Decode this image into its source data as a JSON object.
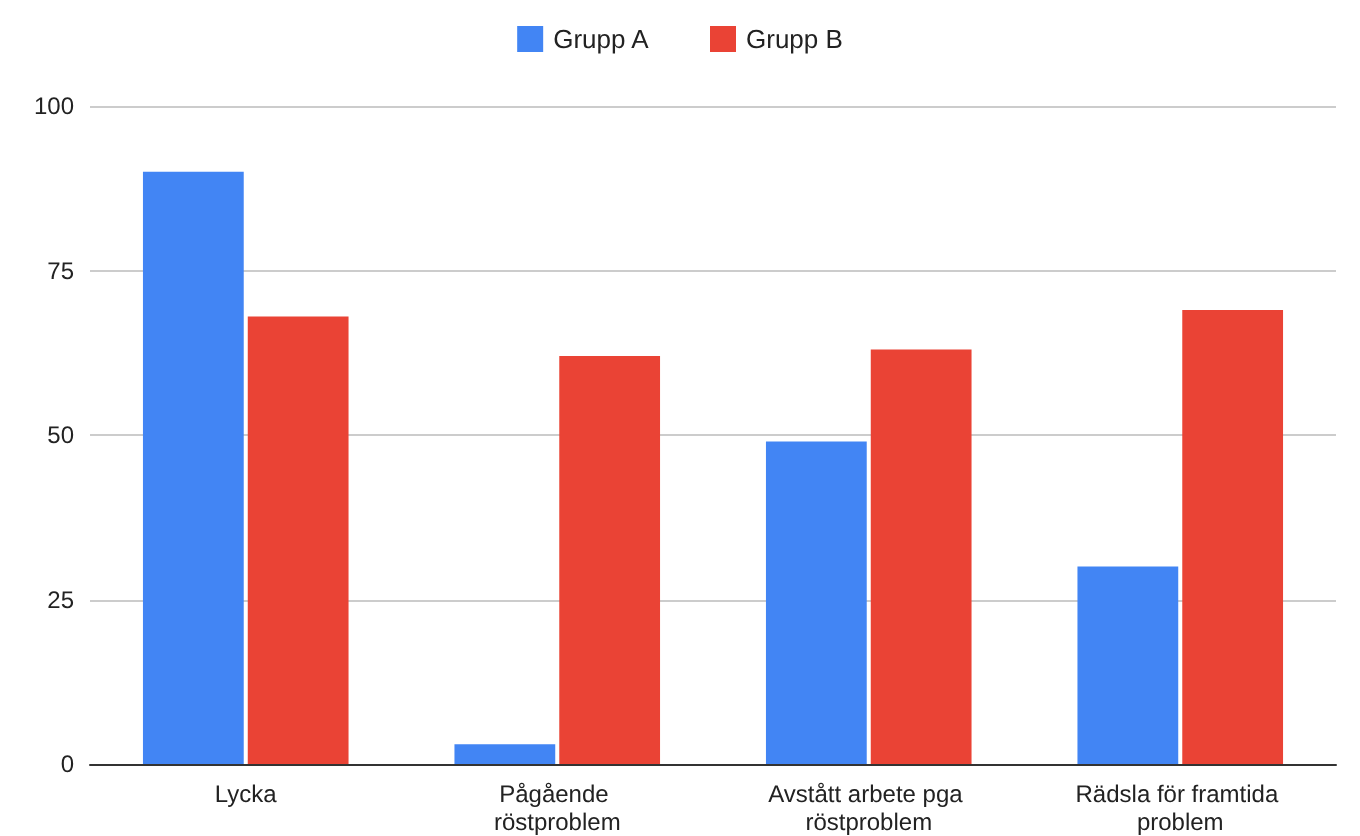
{
  "chart_data": {
    "type": "bar",
    "categories": [
      "Lycka",
      "Pågående röstproblem",
      "Avstått arbete pga röstproblem",
      "Rädsla för framtida problem"
    ],
    "series": [
      {
        "name": "Grupp A",
        "color": "#4285f4",
        "values": [
          90,
          3,
          49,
          30
        ]
      },
      {
        "name": "Grupp B",
        "color": "#ea4335",
        "values": [
          68,
          62,
          63,
          69
        ]
      }
    ],
    "ylim": [
      0,
      100
    ],
    "yticks": [
      0,
      25,
      50,
      75,
      100
    ],
    "grid": "y",
    "legend": "top"
  }
}
